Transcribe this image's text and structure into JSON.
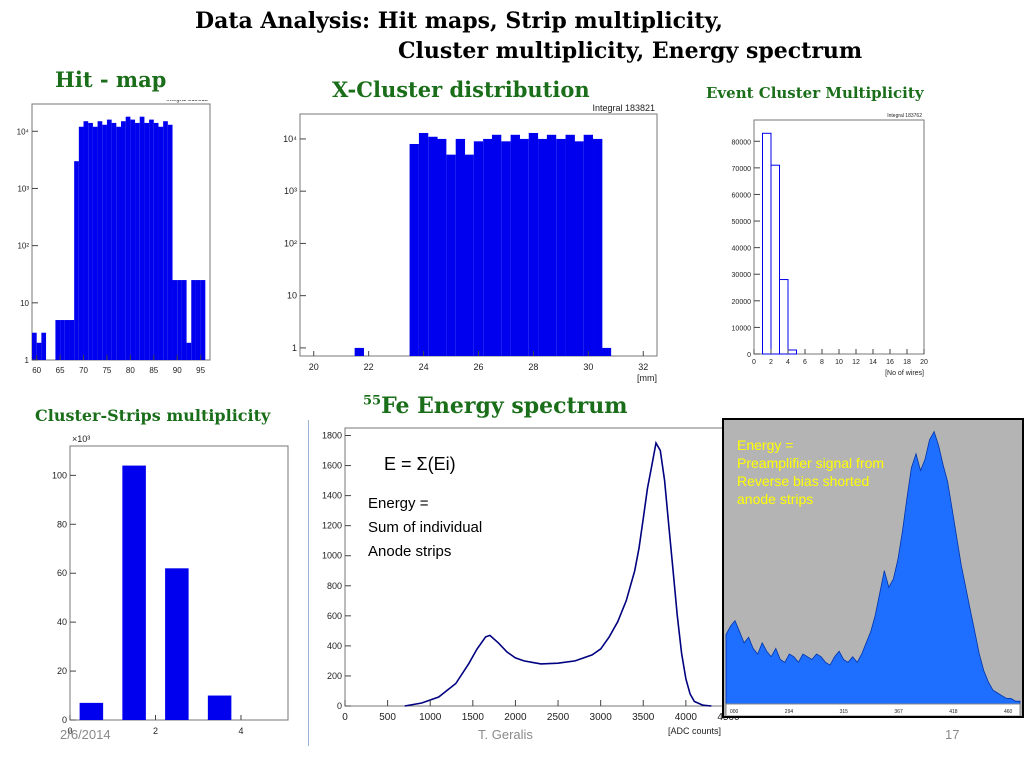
{
  "slide": {
    "title_line1": "Data Analysis: Hit maps, Strip multiplicity,",
    "title_line2": "Cluster multiplicity, Energy spectrum",
    "title_color": "#000000",
    "caption_color": "#1a6e1a",
    "bar_color": "#0000ee",
    "footer": {
      "date": "2/6/2014",
      "author": "T. Geralis",
      "page": "17"
    }
  },
  "captions": {
    "hitmap": "Hit - map",
    "xcluster": "X-Cluster distribution",
    "event_mult": "Event Cluster Multiplicity",
    "strips_mult": "Cluster-Strips multiplicity",
    "fe_sup": "55",
    "fe_rest": "Fe Energy spectrum"
  },
  "annotations": {
    "formula": "E = Σ(Ei)",
    "energy_lines": [
      "Energy =",
      "Sum of individual",
      "Anode strips"
    ],
    "preamp_lines": [
      "Energy =",
      "Preamplifier signal from",
      "Reverse bias shorted",
      "anode strips"
    ],
    "preamp_color": "#ffff00"
  },
  "chart_data": [
    {
      "id": "hitmap",
      "type": "bar",
      "log_y": true,
      "stats_text": "Integral 319615",
      "xlim": [
        59,
        97
      ],
      "ylim": [
        1,
        30000
      ],
      "x_ticks": [
        "60",
        "65",
        "70",
        "75",
        "80",
        "85",
        "90",
        "95"
      ],
      "y_ticks": [
        "1",
        "10",
        "10²",
        "10³",
        "10⁴"
      ],
      "x": [
        59.5,
        60.5,
        61.5,
        62.5,
        63.5,
        64.5,
        65.5,
        66.5,
        67.5,
        68.5,
        69.5,
        70.5,
        71.5,
        72.5,
        73.5,
        74.5,
        75.5,
        76.5,
        77.5,
        78.5,
        79.5,
        80.5,
        81.5,
        82.5,
        83.5,
        84.5,
        85.5,
        86.5,
        87.5,
        88.5,
        89.5,
        90.5,
        91.5,
        92.5,
        93.5,
        94.5,
        95.5
      ],
      "values": [
        3,
        2,
        3,
        1,
        1,
        5,
        5,
        5,
        5,
        3000,
        12000,
        15000,
        14000,
        12000,
        15000,
        13000,
        16000,
        14000,
        12000,
        15000,
        18000,
        16000,
        14000,
        18000,
        14000,
        16000,
        14000,
        12000,
        15000,
        13000,
        25,
        25,
        25,
        2,
        25,
        25,
        25
      ]
    },
    {
      "id": "xcluster",
      "type": "bar",
      "log_y": true,
      "stats_text": "Integral 183821",
      "xlabel": "[mm]",
      "xlim": [
        19.5,
        32.5
      ],
      "ylim": [
        0.7,
        30000
      ],
      "x_ticks": [
        "20",
        "22",
        "24",
        "26",
        "28",
        "30",
        "32"
      ],
      "y_ticks": [
        "1",
        "10",
        "10²",
        "10³",
        "10⁴"
      ],
      "x": [
        21.66,
        23.66,
        24.0,
        24.34,
        24.66,
        25.0,
        25.34,
        25.66,
        26.0,
        26.34,
        26.66,
        27.0,
        27.34,
        27.66,
        28.0,
        28.34,
        28.66,
        29.0,
        29.34,
        29.66,
        30.0,
        30.34,
        30.66
      ],
      "values": [
        1,
        8000,
        13000,
        11000,
        10000,
        5000,
        10000,
        5000,
        9000,
        10000,
        12000,
        9000,
        12000,
        10000,
        13000,
        10000,
        12000,
        10000,
        12000,
        9000,
        12000,
        10000,
        1
      ],
      "bin_width": 0.34
    },
    {
      "id": "event_mult",
      "type": "bar",
      "stats_text": "Integral 183762",
      "xlabel": "[No of wires]",
      "xlim": [
        0,
        20
      ],
      "ylim": [
        0,
        88000
      ],
      "x_ticks": [
        "0",
        "2",
        "4",
        "6",
        "8",
        "10",
        "12",
        "14",
        "16",
        "18",
        "20"
      ],
      "y_ticks": [
        "0",
        "10000",
        "20000",
        "30000",
        "40000",
        "50000",
        "60000",
        "70000",
        "80000"
      ],
      "x": [
        1.5,
        2.5,
        3.5,
        4.5
      ],
      "values": [
        83000,
        71000,
        28000,
        1500
      ],
      "bin_width": 1,
      "outline_only": true
    },
    {
      "id": "strips_mult",
      "type": "bar",
      "y_multiplier_label": "×10³",
      "xlim": [
        0,
        5.1
      ],
      "ylim": [
        0,
        112
      ],
      "x_ticks": [
        "0",
        "2",
        "4"
      ],
      "y_ticks": [
        "0",
        "20",
        "40",
        "60",
        "80",
        "100"
      ],
      "x": [
        0.5,
        1.5,
        2.5,
        3.5
      ],
      "values": [
        7,
        104,
        62,
        10
      ],
      "bin_width": 0.55
    },
    {
      "id": "fe_spectrum",
      "type": "line",
      "xlabel": "[ADC counts]",
      "xlim": [
        0,
        4600
      ],
      "ylim": [
        0,
        1850
      ],
      "x_ticks": [
        "0",
        "500",
        "1000",
        "1500",
        "2000",
        "2500",
        "3000",
        "3500",
        "4000",
        "4500"
      ],
      "y_ticks": [
        "0",
        "200",
        "400",
        "600",
        "800",
        "1000",
        "1200",
        "1400",
        "1600",
        "1800"
      ],
      "x": [
        700,
        900,
        1100,
        1300,
        1450,
        1550,
        1650,
        1700,
        1800,
        1900,
        2000,
        2100,
        2200,
        2300,
        2500,
        2700,
        2900,
        3000,
        3100,
        3200,
        3300,
        3400,
        3450,
        3500,
        3550,
        3600,
        3650,
        3700,
        3750,
        3800,
        3850,
        3900,
        3950,
        4000,
        4050,
        4100,
        4200,
        4300
      ],
      "values": [
        0,
        20,
        60,
        150,
        280,
        380,
        460,
        470,
        420,
        360,
        320,
        300,
        290,
        280,
        285,
        300,
        340,
        380,
        460,
        560,
        700,
        900,
        1050,
        1250,
        1450,
        1600,
        1750,
        1700,
        1500,
        1200,
        900,
        600,
        350,
        180,
        80,
        30,
        5,
        0
      ]
    },
    {
      "id": "preamp_spectrum",
      "type": "area",
      "x_ticks": [
        "000",
        "294",
        "315",
        "367",
        "418",
        "460"
      ],
      "values": [
        0.25,
        0.28,
        0.3,
        0.26,
        0.22,
        0.24,
        0.2,
        0.18,
        0.22,
        0.19,
        0.17,
        0.2,
        0.16,
        0.15,
        0.18,
        0.17,
        0.15,
        0.18,
        0.17,
        0.16,
        0.18,
        0.17,
        0.15,
        0.14,
        0.17,
        0.19,
        0.16,
        0.15,
        0.17,
        0.15,
        0.18,
        0.22,
        0.26,
        0.32,
        0.4,
        0.48,
        0.42,
        0.45,
        0.52,
        0.62,
        0.74,
        0.85,
        0.9,
        0.84,
        0.88,
        0.95,
        0.98,
        0.93,
        0.86,
        0.8,
        0.7,
        0.6,
        0.5,
        0.42,
        0.34,
        0.26,
        0.18,
        0.12,
        0.08,
        0.05,
        0.04,
        0.03,
        0.02,
        0.02,
        0.01,
        0.01
      ],
      "fill_color": "#1e6fff",
      "background": "#b4b4b4"
    }
  ]
}
